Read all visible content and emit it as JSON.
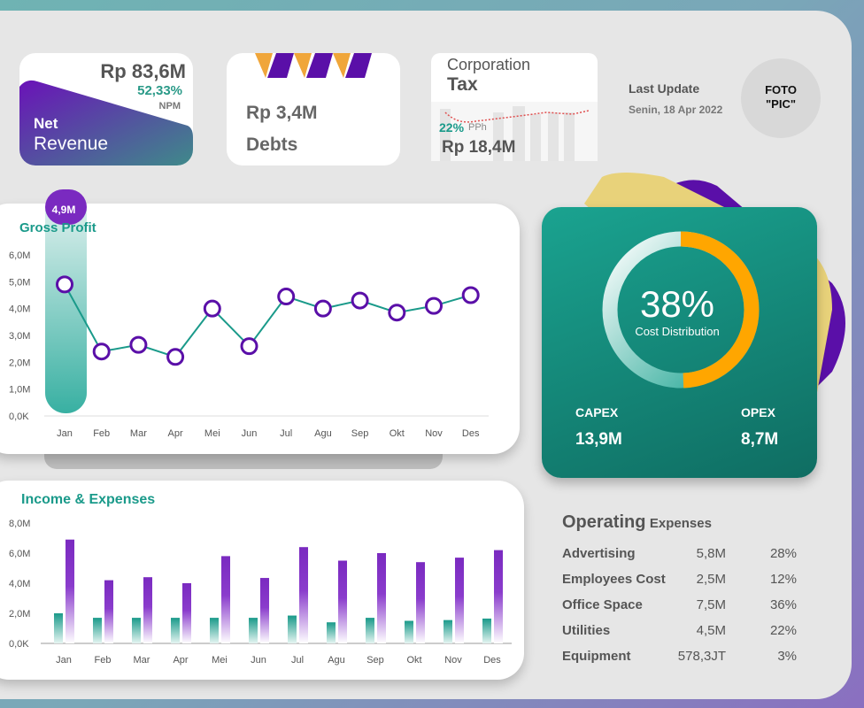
{
  "net_revenue": {
    "value": "Rp 83,6M",
    "npm_pct": "52,33%",
    "npm_label": "NPM",
    "title_line1": "Net",
    "title_line2": "Revenue"
  },
  "debts": {
    "value": "Rp 3,4M",
    "label": "Debts"
  },
  "tax": {
    "title_line1": "Corporation",
    "title_line2": "Tax",
    "pph_pct": "22%",
    "pph_label": "PPh",
    "value": "Rp 18,4M"
  },
  "last_update": {
    "label": "Last Update",
    "date": "Senin, 18 Apr 2022"
  },
  "photo": {
    "line1": "FOTO",
    "line2": "\"PIC\""
  },
  "cost_distribution": {
    "percent": "38%",
    "fraction": 0.38,
    "label": "Cost Distribution",
    "capex_label": "CAPEX",
    "capex_value": "13,9M",
    "opex_label": "OPEX",
    "opex_value": "8,7M",
    "colors": {
      "ring": "#ffa600",
      "bg": "#1a9a8a"
    }
  },
  "operating_expenses": {
    "title_bold": "Operating",
    "title_rest": "Expenses",
    "rows": [
      {
        "name": "Advertising",
        "value": "5,8M",
        "pct": "28%"
      },
      {
        "name": "Employees Cost",
        "value": "2,5M",
        "pct": "12%"
      },
      {
        "name": "Office Space",
        "value": "7,5M",
        "pct": "36%"
      },
      {
        "name": "Utilities",
        "value": "4,5M",
        "pct": "22%"
      },
      {
        "name": "Equipment",
        "value": "578,3JT",
        "pct": "3%"
      }
    ]
  },
  "chart_data": [
    {
      "type": "line",
      "title": "Gross Profit",
      "categories": [
        "Jan",
        "Feb",
        "Mar",
        "Apr",
        "Mei",
        "Jun",
        "Jul",
        "Agu",
        "Sep",
        "Okt",
        "Nov",
        "Des"
      ],
      "values": [
        4.9,
        2.4,
        2.65,
        2.2,
        4.0,
        2.6,
        4.45,
        4.0,
        4.3,
        3.85,
        4.1,
        4.5
      ],
      "highlight_label": "4,9M",
      "unit": "M",
      "yticks": [
        "0,0K",
        "1,0M",
        "2,0M",
        "3,0M",
        "4,0M",
        "5,0M",
        "6,0M"
      ],
      "ylim": [
        0,
        6
      ],
      "colors": {
        "line": "#1a9a8a",
        "marker": "#5a0fa8"
      }
    },
    {
      "type": "bar",
      "title": "Income & Expenses",
      "categories": [
        "Jan",
        "Feb",
        "Mar",
        "Apr",
        "Mei",
        "Jun",
        "Jul",
        "Agu",
        "Sep",
        "Okt",
        "Nov",
        "Des"
      ],
      "series": [
        {
          "values": [
            2.0,
            1.7,
            1.7,
            1.7,
            1.7,
            1.7,
            1.85,
            1.4,
            1.7,
            1.5,
            1.55,
            1.65
          ],
          "color": "#1a9a8a"
        },
        {
          "values": [
            6.9,
            4.2,
            4.4,
            4.0,
            5.8,
            4.35,
            6.4,
            5.5,
            6.0,
            5.4,
            5.7,
            6.2
          ],
          "color": "#7a2ac0"
        }
      ],
      "yticks": [
        "0,0K",
        "2,0M",
        "4,0M",
        "6,0M",
        "8,0M"
      ],
      "ylim": [
        0,
        8
      ]
    }
  ]
}
